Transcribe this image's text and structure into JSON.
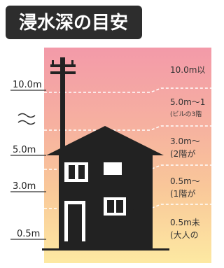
{
  "title": "浸水深の目安",
  "depth_labels": [
    "10.0m",
    "5.0m",
    "3.0m",
    "0.5m"
  ],
  "levels": [
    {
      "lines": [
        "10.0m以"
      ]
    },
    {
      "lines": [
        "5.0m～1",
        "(ビルの3階"
      ]
    },
    {
      "lines": [
        "3.0m～",
        "(2階が"
      ]
    },
    {
      "lines": [
        "0.5m～",
        "(1階が"
      ]
    },
    {
      "lines": [
        "0.5m未",
        "(大人の"
      ]
    }
  ]
}
